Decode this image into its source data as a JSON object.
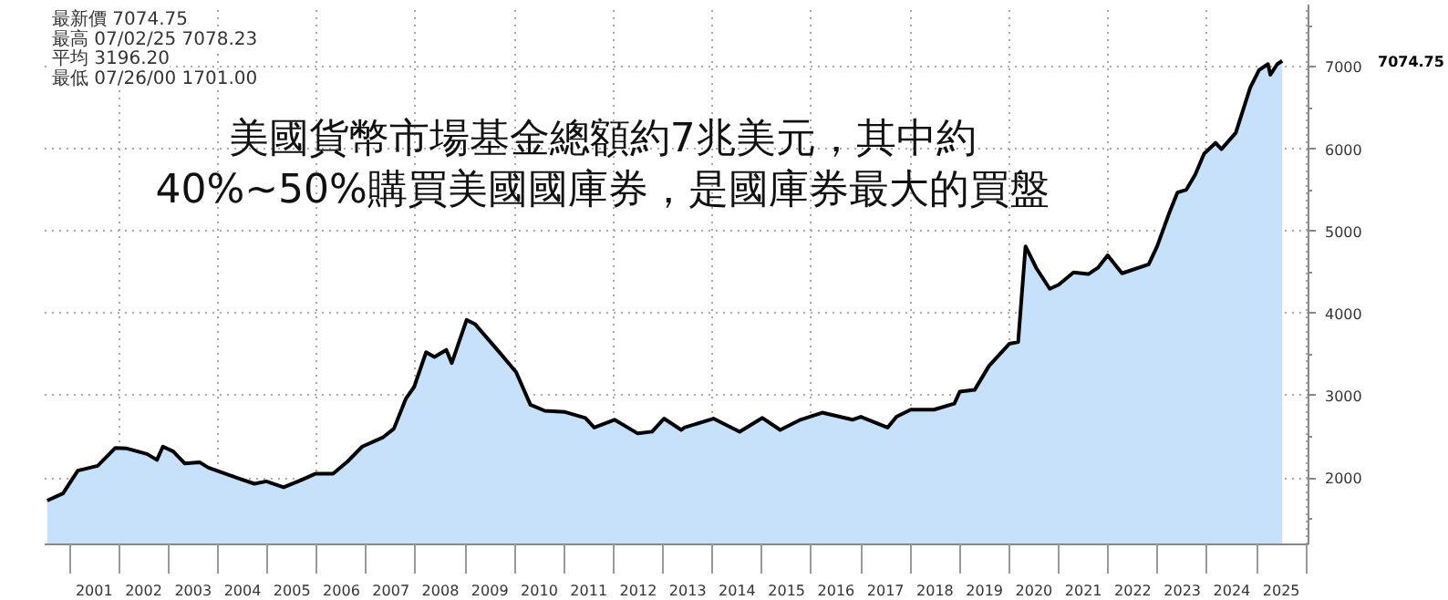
{
  "chart_data": {
    "type": "area",
    "title": "美國貨幣市場基金總額約7兆美元，其中約\n40%~50%購買美國國庫券，是國庫券最大的買盤",
    "annotations": [
      "最新價 7074.75",
      "最高 07/02/25 7078.23",
      "平均 3196.20",
      "最低 07/26/00 1701.00",
      "7074.75"
    ],
    "x": [
      2000.55,
      2000.87,
      2001.17,
      2001.57,
      2001.93,
      2002.16,
      2002.57,
      2002.77,
      2002.89,
      2003.1,
      2003.33,
      2003.63,
      2003.81,
      2004.39,
      2004.74,
      2004.98,
      2005.33,
      2005.68,
      2005.98,
      2006.33,
      2006.62,
      2006.92,
      2007.33,
      2007.56,
      2007.8,
      2007.97,
      2008.21,
      2008.38,
      2008.62,
      2008.73,
      2009.03,
      2009.2,
      2009.67,
      2010.03,
      2010.32,
      2010.61,
      2011.02,
      2011.43,
      2011.61,
      2012.02,
      2012.49,
      2012.78,
      2013.02,
      2013.37,
      2013.43,
      2014.02,
      2014.55,
      2015.01,
      2015.37,
      2015.78,
      2016.22,
      2016.83,
      2017.0,
      2017.54,
      2017.72,
      2018.01,
      2018.48,
      2018.89,
      2019.0,
      2019.3,
      2019.59,
      2020.0,
      2020.18,
      2020.33,
      2020.55,
      2020.82,
      2021.0,
      2021.3,
      2021.6,
      2021.8,
      2021.99,
      2022.28,
      2022.82,
      2022.99,
      2023.23,
      2023.4,
      2023.58,
      2023.76,
      2023.94,
      2024.17,
      2024.29,
      2024.58,
      2024.87,
      2025.05,
      2025.23,
      2025.28,
      2025.42,
      2025.52
    ],
    "series": [
      {
        "color": "#c8e1fa",
        "values": [
          1723,
          1810,
          2087,
          2146,
          2364,
          2357,
          2290,
          2218,
          2380,
          2321,
          2175,
          2190,
          2124,
          2000,
          1928,
          1957,
          1884,
          1972,
          2051,
          2051,
          2197,
          2380,
          2489,
          2598,
          2961,
          3107,
          3528,
          3470,
          3557,
          3397,
          3921,
          3871,
          3544,
          3288,
          2889,
          2816,
          2801,
          2729,
          2611,
          2707,
          2540,
          2562,
          2721,
          2583,
          2611,
          2721,
          2561,
          2729,
          2583,
          2707,
          2793,
          2707,
          2743,
          2611,
          2743,
          2830,
          2830,
          2903,
          3048,
          3070,
          3361,
          3631,
          3652,
          4817,
          4550,
          4300,
          4350,
          4500,
          4480,
          4560,
          4707,
          4489,
          4598,
          4817,
          5216,
          5472,
          5506,
          5690,
          5945,
          6076,
          6000,
          6199,
          6745,
          6963,
          7036,
          6906,
          7036,
          7075
        ]
      }
    ],
    "xlim": [
      2000.5,
      2026.05
    ],
    "ylim": [
      1190,
      7760
    ],
    "xticks": [
      {
        "value": 2001,
        "label": null
      },
      {
        "value": 2001.5,
        "label": "2001"
      },
      {
        "value": 2002,
        "label": null
      },
      {
        "value": 2002.5,
        "label": "2002"
      },
      {
        "value": 2003,
        "label": null
      },
      {
        "value": 2003.5,
        "label": "2003"
      },
      {
        "value": 2004,
        "label": null
      },
      {
        "value": 2004.5,
        "label": "2004"
      },
      {
        "value": 2005,
        "label": null
      },
      {
        "value": 2005.5,
        "label": "2005"
      },
      {
        "value": 2006,
        "label": null
      },
      {
        "value": 2006.5,
        "label": "2006"
      },
      {
        "value": 2007,
        "label": null
      },
      {
        "value": 2007.5,
        "label": "2007"
      },
      {
        "value": 2008,
        "label": null
      },
      {
        "value": 2008.5,
        "label": "2008"
      },
      {
        "value": 2009,
        "label": null
      },
      {
        "value": 2009.5,
        "label": "2009"
      },
      {
        "value": 2010,
        "label": null
      },
      {
        "value": 2010.5,
        "label": "2010"
      },
      {
        "value": 2011,
        "label": null
      },
      {
        "value": 2011.5,
        "label": "2011"
      },
      {
        "value": 2012,
        "label": null
      },
      {
        "value": 2012.5,
        "label": "2012"
      },
      {
        "value": 2013,
        "label": null
      },
      {
        "value": 2013.5,
        "label": "2013"
      },
      {
        "value": 2014,
        "label": null
      },
      {
        "value": 2014.5,
        "label": "2014"
      },
      {
        "value": 2015,
        "label": null
      },
      {
        "value": 2015.5,
        "label": "2015"
      },
      {
        "value": 2016,
        "label": null
      },
      {
        "value": 2016.5,
        "label": "2016"
      },
      {
        "value": 2017,
        "label": null
      },
      {
        "value": 2017.5,
        "label": "2017"
      },
      {
        "value": 2018,
        "label": null
      },
      {
        "value": 2018.5,
        "label": "2018"
      },
      {
        "value": 2019,
        "label": null
      },
      {
        "value": 2019.5,
        "label": "2019"
      },
      {
        "value": 2020,
        "label": null
      },
      {
        "value": 2020.5,
        "label": "2020"
      },
      {
        "value": 2021,
        "label": null
      },
      {
        "value": 2021.5,
        "label": "2021"
      },
      {
        "value": 2022,
        "label": null
      },
      {
        "value": 2022.5,
        "label": "2022"
      },
      {
        "value": 2023,
        "label": null
      },
      {
        "value": 2023.5,
        "label": "2023"
      },
      {
        "value": 2024,
        "label": null
      },
      {
        "value": 2024.5,
        "label": "2024"
      },
      {
        "value": 2025,
        "label": null
      },
      {
        "value": 2025.5,
        "label": "2025"
      },
      {
        "value": 2026,
        "label": null
      }
    ],
    "yticks": [
      {
        "value": 1500,
        "label": null
      },
      2000,
      {
        "value": 2500,
        "label": null
      },
      3000,
      {
        "value": 3500,
        "label": null
      },
      4000,
      {
        "value": 4500,
        "label": null
      },
      5000,
      {
        "value": 5500,
        "label": null
      },
      6000,
      {
        "value": 6500,
        "label": null
      },
      7000,
      {
        "value": 7500,
        "label": null
      }
    ],
    "grid": true
  }
}
